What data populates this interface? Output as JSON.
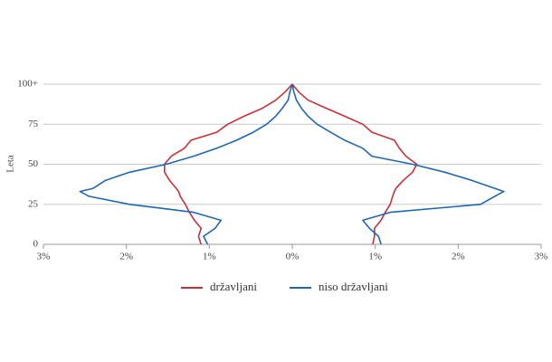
{
  "chart_data": {
    "type": "line",
    "y_label": "Leta",
    "y": [
      0,
      5,
      10,
      15,
      20,
      25,
      30,
      33,
      35,
      40,
      45,
      50,
      55,
      60,
      65,
      70,
      75,
      80,
      85,
      90,
      95,
      100
    ],
    "series": [
      {
        "name": "državljani",
        "color": "#c8303a",
        "left": [
          -1.1,
          -1.13,
          -1.1,
          -1.18,
          -1.24,
          -1.29,
          -1.35,
          -1.37,
          -1.4,
          -1.48,
          -1.54,
          -1.54,
          -1.46,
          -1.3,
          -1.22,
          -0.91,
          -0.78,
          -0.58,
          -0.36,
          -0.2,
          -0.09,
          0
        ],
        "right": [
          0.97,
          0.99,
          0.99,
          1.07,
          1.12,
          1.18,
          1.21,
          1.23,
          1.25,
          1.34,
          1.45,
          1.5,
          1.37,
          1.29,
          1.23,
          0.96,
          0.85,
          0.63,
          0.41,
          0.19,
          0.08,
          0
        ]
      },
      {
        "name": "niso državljani",
        "color": "#1f67b1",
        "left": [
          -1.02,
          -1.07,
          -0.93,
          -0.86,
          -1.19,
          -1.96,
          -2.45,
          -2.56,
          -2.4,
          -2.25,
          -1.96,
          -1.52,
          -1.19,
          -0.91,
          -0.67,
          -0.47,
          -0.31,
          -0.2,
          -0.12,
          -0.05,
          -0.03,
          0
        ],
        "right": [
          1.07,
          1.04,
          0.93,
          0.85,
          1.18,
          2.27,
          2.44,
          2.55,
          2.44,
          2.16,
          1.84,
          1.45,
          0.96,
          0.85,
          0.63,
          0.46,
          0.3,
          0.19,
          0.11,
          0.05,
          0.02,
          0
        ]
      }
    ],
    "xlim": [
      -3,
      3
    ],
    "xticks": [
      {
        "value": -3,
        "label": "3%"
      },
      {
        "value": -2,
        "label": "2%"
      },
      {
        "value": -1,
        "label": "1%"
      },
      {
        "value": 0,
        "label": "0%"
      },
      {
        "value": 1,
        "label": "1%"
      },
      {
        "value": 2,
        "label": "2%"
      },
      {
        "value": 3,
        "label": "3%"
      }
    ],
    "ylim": [
      0,
      100
    ],
    "yticks": [
      0,
      25,
      50,
      75,
      {
        "value": 100,
        "label": "100+"
      }
    ],
    "grid": true
  }
}
